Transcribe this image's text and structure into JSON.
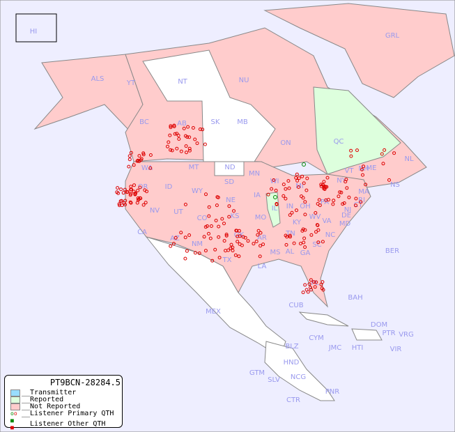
{
  "map": {
    "background": "#eeeeff",
    "colors": {
      "transmitter": "#99ddff",
      "reported": "#ddffdd",
      "not_reported": "#ffcccc",
      "unreported_white": "#ffffff",
      "primary_qth": "#008800",
      "other_qth": "#dd0000"
    },
    "labels": [
      "HI",
      "ALS",
      "YT",
      "NT",
      "NU",
      "GRL",
      "BC",
      "AB",
      "SK",
      "MB",
      "ON",
      "QC",
      "NL",
      "NS",
      "WA",
      "OR",
      "ID",
      "MT",
      "ND",
      "WY",
      "SD",
      "MN",
      "WI",
      "MI",
      "NY",
      "VT",
      "NH",
      "ME",
      "MA",
      "RI",
      "CT",
      "NJ",
      "PA",
      "DE",
      "MD",
      "OH",
      "IN",
      "IL",
      "IA",
      "NE",
      "KS",
      "MO",
      "KY",
      "WV",
      "VA",
      "NC",
      "TN",
      "OK",
      "AR",
      "SC",
      "GA",
      "AL",
      "MS",
      "LA",
      "TX",
      "NM",
      "AZ",
      "UT",
      "CO",
      "NV",
      "CA",
      "FL",
      "MEX",
      "BER",
      "BAH",
      "CUB",
      "CYM",
      "JMC",
      "HTI",
      "DOM",
      "PTR",
      "VRG",
      "VIR",
      "BLZ",
      "HND",
      "GTM",
      "SLV",
      "NCG",
      "CTR",
      "PNR"
    ]
  },
  "legend": {
    "title": "PT9BCN-28284.5",
    "items": [
      {
        "label": "__Transmitter",
        "color": "#99ddff"
      },
      {
        "label": "__Reported",
        "color": "#ddffdd"
      },
      {
        "label": "__Not Reported",
        "color": "#ffcccc"
      },
      {
        "label": "__Listener Primary QTH",
        "icon": "circle-marker"
      },
      {
        "label": "__Listener Other QTH",
        "icon": "square-marker"
      }
    ]
  }
}
